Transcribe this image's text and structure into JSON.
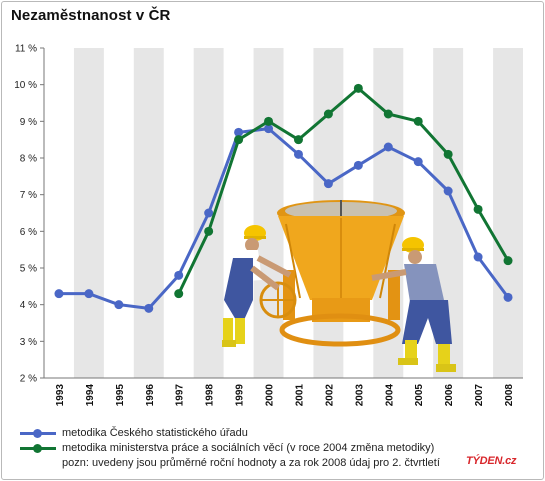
{
  "title": "Nezaměstnanost v ČR",
  "chart_data": {
    "type": "line",
    "categories": [
      "1993",
      "1994",
      "1995",
      "1996",
      "1997",
      "1998",
      "1999",
      "2000",
      "2001",
      "2002",
      "2003",
      "2004",
      "2005",
      "2006",
      "2007",
      "2008"
    ],
    "y_tick_labels": [
      "2 %",
      "3 %",
      "4 %",
      "5 %",
      "6 %",
      "7 %",
      "8 %",
      "9 %",
      "10 %",
      "11 %"
    ],
    "ylim": [
      2,
      11
    ],
    "grid": "alternating vertical bands",
    "legend_position": "bottom",
    "series": [
      {
        "name": "metodika Českého statistického úřadu",
        "color": "#4a67c6",
        "values": [
          4.3,
          4.3,
          4.0,
          3.9,
          4.8,
          6.5,
          8.7,
          8.8,
          8.1,
          7.3,
          7.8,
          8.3,
          7.9,
          7.1,
          5.3,
          4.2
        ]
      },
      {
        "name": "metodika ministerstva práce a sociálních věcí (v roce 2004 změna metodiky)",
        "color": "#117533",
        "values": [
          null,
          null,
          null,
          null,
          4.3,
          6.0,
          8.5,
          9.0,
          8.5,
          9.2,
          9.9,
          9.2,
          9.0,
          8.1,
          6.6,
          5.2
        ]
      }
    ]
  },
  "legend": {
    "items": [
      {
        "label": "metodika Českého statistického úřadu",
        "color": "#4a67c6"
      },
      {
        "label": "metodika ministerstva práce a sociálních věcí (v roce 2004 změna metodiky)",
        "color": "#117533"
      }
    ],
    "note": "pozn: uvedeny jsou průměrné roční hodnoty a za rok 2008 údaj pro 2. čtvrtletí"
  },
  "brand": "TÝDEN.cz",
  "colors": {
    "band": "#e6e6e6",
    "axis": "#777777",
    "bucket": "#f0a71d",
    "helmet": "#f5c400",
    "overalls": "#3f56a0",
    "boots": "#e6d21a"
  }
}
